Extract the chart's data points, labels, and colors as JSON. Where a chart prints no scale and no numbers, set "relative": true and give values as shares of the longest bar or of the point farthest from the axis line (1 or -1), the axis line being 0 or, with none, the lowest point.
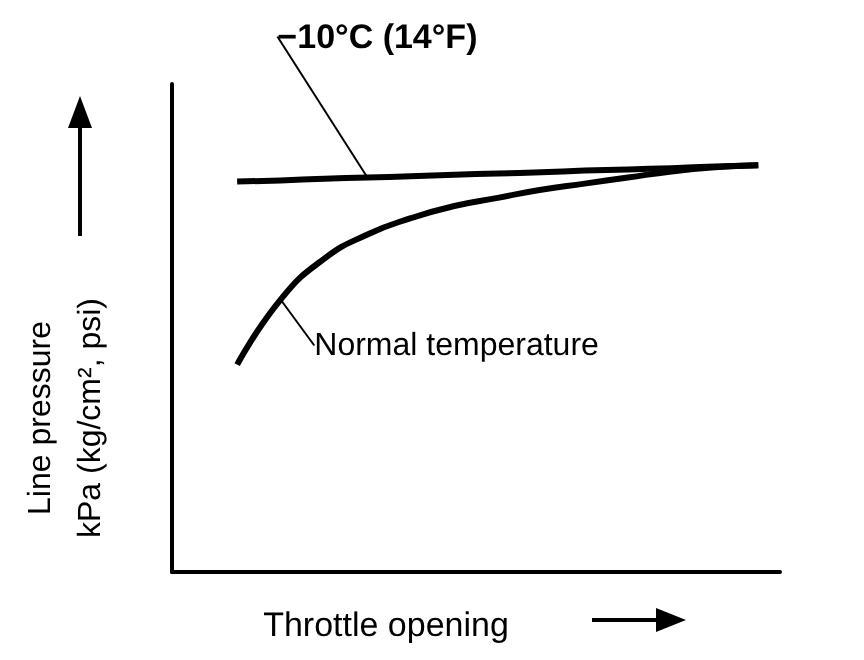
{
  "chart_data": {
    "type": "line",
    "relative": true,
    "xlabel": "Throttle opening",
    "ylabel": "Line pressure\nkPa (kg/cm², psi)",
    "categories": [
      null,
      null,
      null,
      null,
      null,
      null,
      null,
      null,
      null,
      null,
      null,
      null,
      null,
      null
    ],
    "series": [
      {
        "name": "−10°C (14°F)",
        "color": "#000000",
        "values": [
          null,
          0.96,
          0.963,
          0.967,
          0.97,
          0.973,
          0.977,
          0.98,
          0.983,
          0.987,
          0.99,
          0.993,
          0.997,
          1.0
        ]
      },
      {
        "name": "Normal temperature",
        "color": "#000000",
        "values": [
          null,
          0.51,
          0.67,
          0.77,
          0.83,
          0.87,
          0.9,
          0.92,
          0.94,
          0.955,
          0.97,
          0.985,
          0.995,
          1.0
        ]
      }
    ],
    "grid": false,
    "legend": false,
    "marker": "none",
    "line_style": "solid"
  }
}
